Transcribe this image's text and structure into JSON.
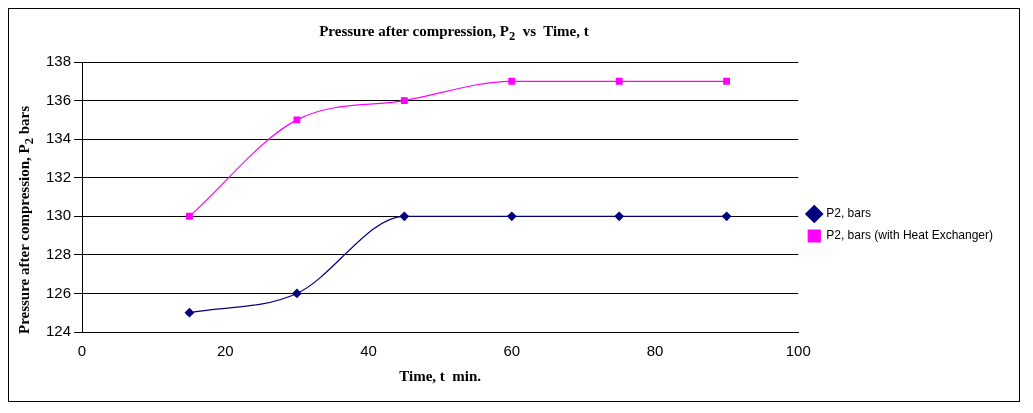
{
  "chart_data": {
    "type": "line",
    "title": "Pressure after compression, P$_{2}$  vs  Time, t",
    "xlabel": "Time, t  min.",
    "ylabel": "Pressure after compression, P$_{2}$ bars",
    "x": [
      15,
      30,
      45,
      60,
      75,
      90
    ],
    "series": [
      {
        "name": "P2, bars",
        "color": "#000080",
        "marker": "diamond",
        "values": [
          125,
          126,
          130,
          130,
          130,
          130
        ]
      },
      {
        "name": "P2, bars (with Heat Exchanger)",
        "color": "#ff00ff",
        "marker": "square",
        "values": [
          130,
          135,
          136,
          137,
          137,
          137
        ]
      }
    ],
    "xlim": [
      0,
      100
    ],
    "xticks": [
      0,
      20,
      40,
      60,
      80,
      100
    ],
    "ylim": [
      124,
      138
    ],
    "yticks": [
      124,
      126,
      128,
      130,
      132,
      134,
      136,
      138
    ],
    "grid": "y",
    "legend": "right"
  }
}
